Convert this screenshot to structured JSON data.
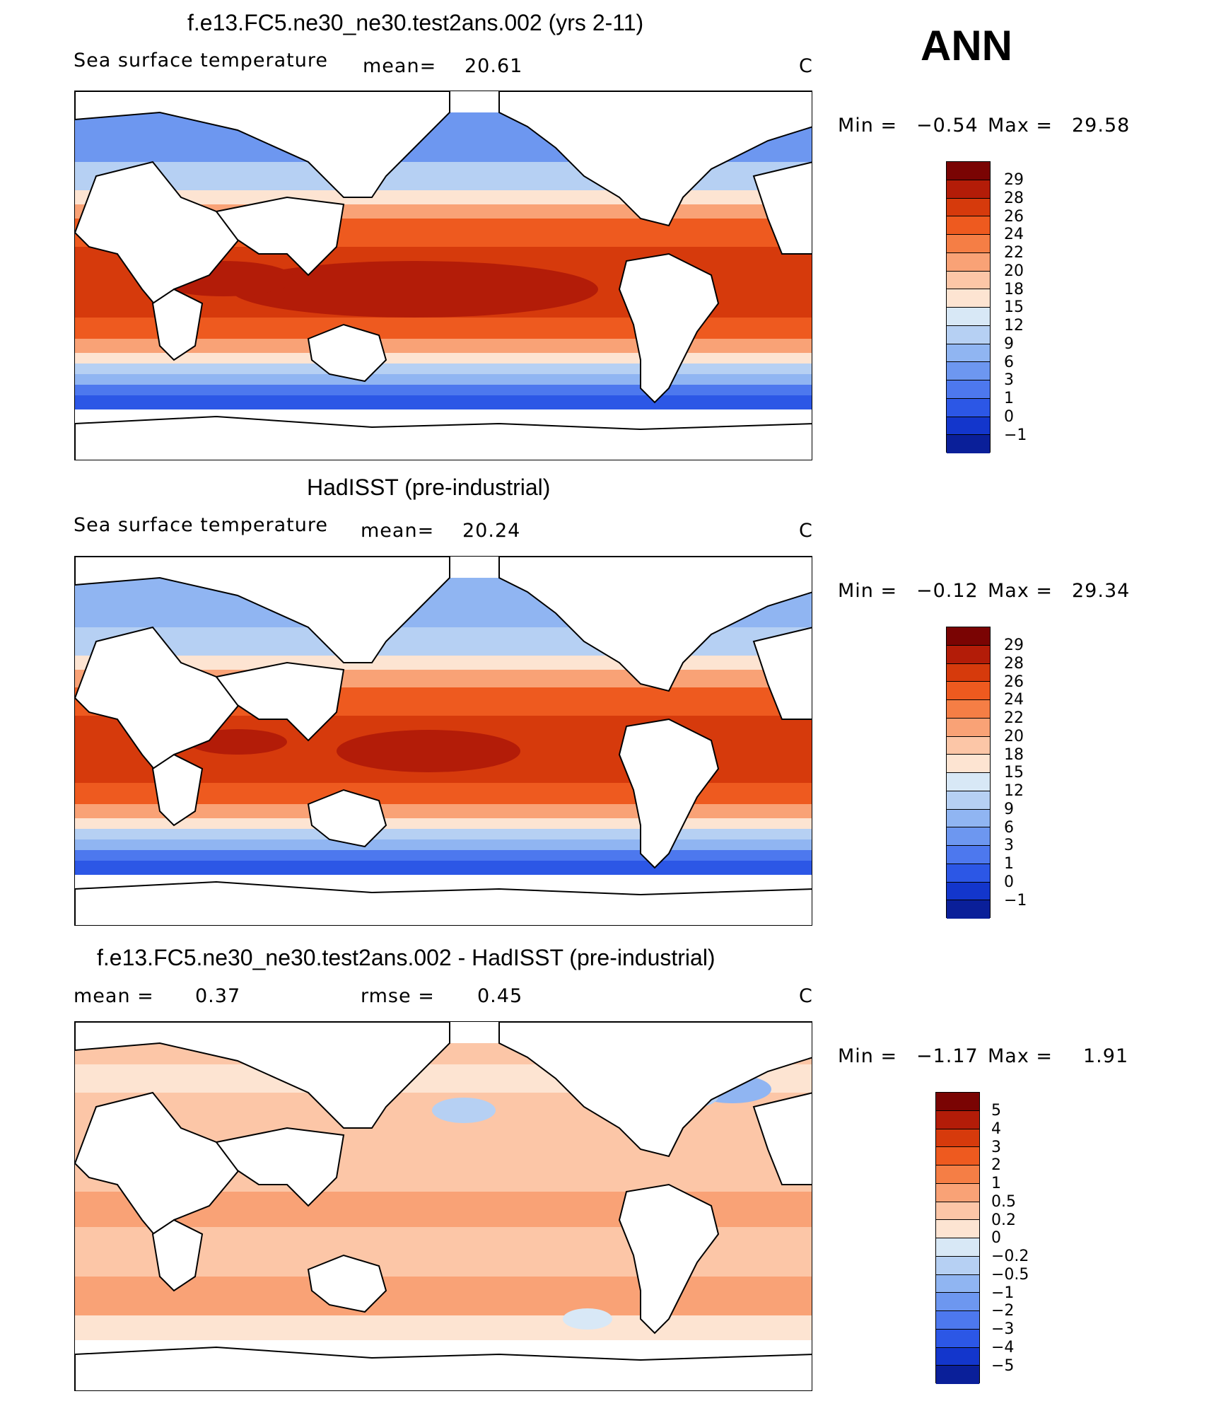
{
  "season": "ANN",
  "unit": "C",
  "panels": [
    {
      "id": "model",
      "title": "f.e13.FC5.ne30_ne30.test2ans.002 (yrs 2-11)",
      "variable": "Sea surface temperature",
      "stat1_label": "mean=",
      "stat1_value": "20.61",
      "unit": "C",
      "min_label": "Min =",
      "min_value": "−0.54",
      "max_label": "Max =",
      "max_value": "29.58",
      "levels": [
        "29",
        "28",
        "26",
        "24",
        "22",
        "20",
        "18",
        "15",
        "12",
        "9",
        "6",
        "3",
        "1",
        "0",
        "−1"
      ]
    },
    {
      "id": "obs",
      "title": "HadISST (pre-industrial)",
      "variable": "Sea surface temperature",
      "stat1_label": "mean=",
      "stat1_value": "20.24",
      "unit": "C",
      "min_label": "Min =",
      "min_value": "−0.12",
      "max_label": "Max =",
      "max_value": "29.34",
      "levels": [
        "29",
        "28",
        "26",
        "24",
        "22",
        "20",
        "18",
        "15",
        "12",
        "9",
        "6",
        "3",
        "1",
        "0",
        "−1"
      ]
    },
    {
      "id": "diff",
      "title": "f.e13.FC5.ne30_ne30.test2ans.002 - HadISST (pre-industrial)",
      "stat1_label": "mean =",
      "stat1_value": "0.37",
      "stat2_label": "rmse =",
      "stat2_value": "0.45",
      "unit": "C",
      "min_label": "Min =",
      "min_value": "−1.17",
      "max_label": "Max =",
      "max_value": "1.91",
      "levels": [
        "5",
        "4",
        "3",
        "2",
        "1",
        "0.5",
        "0.2",
        "0",
        "−0.2",
        "−0.5",
        "−1",
        "−2",
        "−3",
        "−4",
        "−5"
      ]
    }
  ],
  "colors": {
    "sst_scale": [
      "#7a0403",
      "#b31c08",
      "#d63a0c",
      "#ee5a1f",
      "#f57e45",
      "#f9a276",
      "#fcc6a7",
      "#fde4d2",
      "#d8e8f6",
      "#b6d0f3",
      "#90b5f2",
      "#6d97f0",
      "#4d78ee",
      "#2c57e6",
      "#1336cc",
      "#0a1f99"
    ],
    "diff_scale": [
      "#7a0403",
      "#b31c08",
      "#d63a0c",
      "#ee5a1f",
      "#f57e45",
      "#f9a276",
      "#fcc6a7",
      "#fde4d2",
      "#d8e8f6",
      "#b6d0f3",
      "#90b5f2",
      "#6d97f0",
      "#4d78ee",
      "#2c57e6",
      "#1336cc",
      "#0a1f99"
    ]
  }
}
